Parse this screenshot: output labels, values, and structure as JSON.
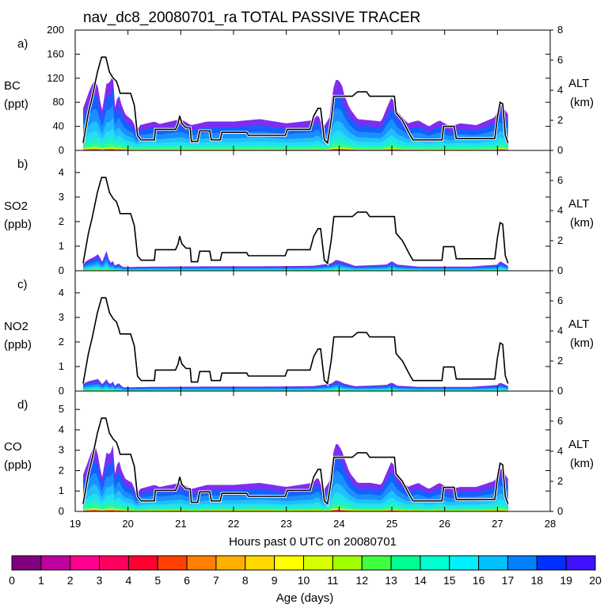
{
  "title": "nav_dc8_20080701_ra TOTAL PASSIVE TRACER",
  "chart_data": {
    "type": "area",
    "x_axis": {
      "label": "Hours past 0 UTC on 20080701",
      "range": [
        19,
        28
      ],
      "ticks": [
        "19",
        "20",
        "21",
        "22",
        "23",
        "24",
        "25",
        "26",
        "27",
        "28"
      ]
    },
    "altitude_km": [
      [
        19.15,
        0.5
      ],
      [
        19.25,
        2.5
      ],
      [
        19.32,
        3.5
      ],
      [
        19.42,
        5.2
      ],
      [
        19.5,
        6.2
      ],
      [
        19.58,
        6.2
      ],
      [
        19.65,
        5.2
      ],
      [
        19.72,
        4.8
      ],
      [
        19.78,
        4.6
      ],
      [
        19.82,
        4.2
      ],
      [
        19.85,
        3.8
      ],
      [
        20.05,
        3.8
      ],
      [
        20.12,
        3.0
      ],
      [
        20.18,
        1.0
      ],
      [
        20.25,
        0.7
      ],
      [
        20.5,
        0.7
      ],
      [
        20.52,
        1.4
      ],
      [
        20.9,
        1.4
      ],
      [
        20.95,
        1.8
      ],
      [
        20.98,
        2.3
      ],
      [
        21.02,
        1.8
      ],
      [
        21.1,
        1.5
      ],
      [
        21.18,
        1.5
      ],
      [
        21.2,
        0.6
      ],
      [
        21.32,
        0.6
      ],
      [
        21.36,
        1.3
      ],
      [
        21.55,
        1.3
      ],
      [
        21.58,
        0.7
      ],
      [
        21.75,
        0.7
      ],
      [
        21.78,
        1.2
      ],
      [
        22.25,
        1.2
      ],
      [
        22.28,
        1.0
      ],
      [
        22.98,
        1.0
      ],
      [
        23.02,
        1.4
      ],
      [
        23.45,
        1.4
      ],
      [
        23.52,
        2.3
      ],
      [
        23.6,
        2.8
      ],
      [
        23.65,
        2.8
      ],
      [
        23.72,
        0.7
      ],
      [
        23.78,
        0.5
      ],
      [
        23.85,
        2.0
      ],
      [
        23.9,
        3.6
      ],
      [
        24.25,
        3.6
      ],
      [
        24.35,
        3.9
      ],
      [
        24.52,
        3.9
      ],
      [
        24.58,
        3.6
      ],
      [
        25.05,
        3.6
      ],
      [
        25.08,
        2.5
      ],
      [
        25.2,
        2.0
      ],
      [
        25.35,
        1.0
      ],
      [
        25.4,
        0.7
      ],
      [
        25.95,
        0.7
      ],
      [
        25.98,
        1.6
      ],
      [
        26.18,
        1.6
      ],
      [
        26.22,
        0.8
      ],
      [
        26.95,
        0.8
      ],
      [
        27.0,
        2.2
      ],
      [
        27.05,
        3.2
      ],
      [
        27.1,
        3.1
      ],
      [
        27.15,
        1.0
      ],
      [
        27.2,
        0.5
      ]
    ],
    "panels": [
      {
        "panel_label": "a)",
        "ylabel": "BC",
        "yunits": "(ppt)",
        "ylim": [
          0,
          200
        ],
        "yticks": [
          "0",
          "40",
          "80",
          "120",
          "160",
          "200"
        ],
        "alt_label": "ALT",
        "alt_units": "(km)",
        "alt_lim": [
          0,
          8
        ],
        "alt_ticks": [
          "0",
          "2",
          "4",
          "6",
          "8"
        ],
        "tracer_envelope": [
          [
            19.15,
            70
          ],
          [
            19.25,
            95
          ],
          [
            19.32,
            110
          ],
          [
            19.38,
            118
          ],
          [
            19.45,
            100
          ],
          [
            19.5,
            60
          ],
          [
            19.6,
            115
          ],
          [
            19.65,
            110
          ],
          [
            19.72,
            130
          ],
          [
            19.75,
            70
          ],
          [
            19.82,
            95
          ],
          [
            19.88,
            75
          ],
          [
            19.95,
            60
          ],
          [
            20.08,
            50
          ],
          [
            20.14,
            40
          ],
          [
            20.16,
            30
          ],
          [
            20.22,
            42
          ],
          [
            20.5,
            48
          ],
          [
            20.6,
            44
          ],
          [
            21.0,
            52
          ],
          [
            21.2,
            42
          ],
          [
            21.5,
            48
          ],
          [
            22.0,
            48
          ],
          [
            22.5,
            52
          ],
          [
            23.0,
            45
          ],
          [
            23.5,
            50
          ],
          [
            23.6,
            60
          ],
          [
            23.7,
            38
          ],
          [
            23.82,
            55
          ],
          [
            23.88,
            100
          ],
          [
            23.95,
            120
          ],
          [
            24.05,
            110
          ],
          [
            24.1,
            92
          ],
          [
            24.2,
            70
          ],
          [
            24.35,
            52
          ],
          [
            24.6,
            50
          ],
          [
            24.8,
            48
          ],
          [
            24.9,
            70
          ],
          [
            25.0,
            90
          ],
          [
            25.1,
            65
          ],
          [
            25.3,
            45
          ],
          [
            25.5,
            50
          ],
          [
            25.7,
            40
          ],
          [
            25.9,
            50
          ],
          [
            26.1,
            40
          ],
          [
            26.3,
            45
          ],
          [
            26.6,
            42
          ],
          [
            26.95,
            55
          ],
          [
            27.0,
            65
          ],
          [
            27.05,
            80
          ],
          [
            27.12,
            70
          ],
          [
            27.2,
            60
          ]
        ]
      },
      {
        "panel_label": "b)",
        "ylabel": "SO2",
        "yunits": "(ppb)",
        "ylim": [
          0,
          4.9
        ],
        "yticks": [
          "0",
          "1",
          "2",
          "3",
          "4"
        ],
        "alt_label": "ALT",
        "alt_units": "(km)",
        "alt_lim": [
          0,
          8
        ],
        "alt_ticks": [
          "0",
          "2",
          "4",
          "6"
        ],
        "tracer_envelope": [
          [
            19.15,
            0.3
          ],
          [
            19.25,
            0.45
          ],
          [
            19.35,
            0.55
          ],
          [
            19.45,
            0.7
          ],
          [
            19.5,
            0.3
          ],
          [
            19.6,
            0.85
          ],
          [
            19.65,
            0.3
          ],
          [
            19.72,
            0.4
          ],
          [
            19.75,
            0.2
          ],
          [
            19.82,
            0.3
          ],
          [
            19.9,
            0.15
          ],
          [
            20.5,
            0.17
          ],
          [
            21.5,
            0.18
          ],
          [
            22.5,
            0.18
          ],
          [
            23.5,
            0.2
          ],
          [
            23.85,
            0.3
          ],
          [
            23.95,
            0.45
          ],
          [
            24.1,
            0.35
          ],
          [
            24.3,
            0.2
          ],
          [
            24.9,
            0.25
          ],
          [
            25.0,
            0.4
          ],
          [
            25.1,
            0.25
          ],
          [
            25.5,
            0.17
          ],
          [
            26.5,
            0.17
          ],
          [
            27.0,
            0.25
          ],
          [
            27.05,
            0.4
          ],
          [
            27.2,
            0.2
          ]
        ]
      },
      {
        "panel_label": "c)",
        "ylabel": "NO2",
        "yunits": "(ppb)",
        "ylim": [
          0,
          4.9
        ],
        "yticks": [
          "0",
          "1",
          "2",
          "3",
          "4"
        ],
        "alt_label": "ALT",
        "alt_units": "(km)",
        "alt_lim": [
          0,
          8
        ],
        "alt_ticks": [
          "0",
          "2",
          "4",
          "6"
        ],
        "tracer_envelope": [
          [
            19.15,
            0.3
          ],
          [
            19.25,
            0.4
          ],
          [
            19.35,
            0.45
          ],
          [
            19.45,
            0.5
          ],
          [
            19.5,
            0.25
          ],
          [
            19.6,
            0.5
          ],
          [
            19.65,
            0.25
          ],
          [
            19.72,
            0.4
          ],
          [
            19.75,
            0.2
          ],
          [
            19.82,
            0.35
          ],
          [
            19.9,
            0.15
          ],
          [
            20.5,
            0.17
          ],
          [
            21.5,
            0.18
          ],
          [
            22.5,
            0.18
          ],
          [
            23.5,
            0.2
          ],
          [
            23.85,
            0.3
          ],
          [
            23.95,
            0.45
          ],
          [
            24.1,
            0.3
          ],
          [
            24.3,
            0.2
          ],
          [
            24.9,
            0.25
          ],
          [
            25.0,
            0.35
          ],
          [
            25.1,
            0.22
          ],
          [
            25.5,
            0.17
          ],
          [
            26.5,
            0.17
          ],
          [
            27.0,
            0.25
          ],
          [
            27.05,
            0.35
          ],
          [
            27.2,
            0.2
          ]
        ]
      },
      {
        "panel_label": "d)",
        "ylabel": "CO",
        "yunits": "(ppb)",
        "ylim": [
          0,
          5.9
        ],
        "yticks": [
          "0",
          "1",
          "2",
          "3",
          "4",
          "5"
        ],
        "alt_label": "ALT",
        "alt_units": "(km)",
        "alt_lim": [
          0,
          8
        ],
        "alt_ticks": [
          "0",
          "2",
          "4",
          "6"
        ],
        "tracer_envelope": [
          [
            19.15,
            1.8
          ],
          [
            19.25,
            2.5
          ],
          [
            19.32,
            3.0
          ],
          [
            19.38,
            3.2
          ],
          [
            19.45,
            2.6
          ],
          [
            19.5,
            1.5
          ],
          [
            19.6,
            3.0
          ],
          [
            19.65,
            2.7
          ],
          [
            19.72,
            3.3
          ],
          [
            19.75,
            1.8
          ],
          [
            19.82,
            2.6
          ],
          [
            19.88,
            2.0
          ],
          [
            19.95,
            1.6
          ],
          [
            20.08,
            1.4
          ],
          [
            20.14,
            1.0
          ],
          [
            20.16,
            0.8
          ],
          [
            20.22,
            1.1
          ],
          [
            20.5,
            1.3
          ],
          [
            20.6,
            1.2
          ],
          [
            21.0,
            1.4
          ],
          [
            21.2,
            1.1
          ],
          [
            21.5,
            1.3
          ],
          [
            22.0,
            1.3
          ],
          [
            22.5,
            1.4
          ],
          [
            23.0,
            1.2
          ],
          [
            23.5,
            1.4
          ],
          [
            23.6,
            1.7
          ],
          [
            23.7,
            1.0
          ],
          [
            23.82,
            1.5
          ],
          [
            23.88,
            2.8
          ],
          [
            23.95,
            3.4
          ],
          [
            24.05,
            3.0
          ],
          [
            24.1,
            2.6
          ],
          [
            24.2,
            1.9
          ],
          [
            24.35,
            1.4
          ],
          [
            24.6,
            1.4
          ],
          [
            24.8,
            1.3
          ],
          [
            24.9,
            1.9
          ],
          [
            25.0,
            2.5
          ],
          [
            25.1,
            1.8
          ],
          [
            25.3,
            1.2
          ],
          [
            25.5,
            1.4
          ],
          [
            25.7,
            1.1
          ],
          [
            25.9,
            1.4
          ],
          [
            26.1,
            1.1
          ],
          [
            26.3,
            1.2
          ],
          [
            26.6,
            1.2
          ],
          [
            26.95,
            1.5
          ],
          [
            27.0,
            1.8
          ],
          [
            27.05,
            2.2
          ],
          [
            27.12,
            1.9
          ],
          [
            27.2,
            1.6
          ]
        ]
      }
    ],
    "colorbar": {
      "label": "Age (days)",
      "ticks": [
        "0",
        "1",
        "2",
        "3",
        "4",
        "5",
        "6",
        "7",
        "8",
        "9",
        "10",
        "11",
        "12",
        "13",
        "14",
        "15",
        "16",
        "17",
        "18",
        "19",
        "20"
      ],
      "colors": [
        "#800080",
        "#c000a0",
        "#ff0090",
        "#ff0060",
        "#ff0030",
        "#ff4000",
        "#ff8000",
        "#ffb000",
        "#ffd800",
        "#ffff00",
        "#d8ff00",
        "#a0ff00",
        "#40ff40",
        "#00ff90",
        "#00ffd0",
        "#00f0ff",
        "#00c0ff",
        "#0080ff",
        "#0030ff",
        "#4010ff"
      ]
    },
    "band_colors": [
      "#7f2df0",
      "#1560ff",
      "#1a90ff",
      "#20c0ff",
      "#22e0f0",
      "#22f0c8",
      "#30ff90",
      "#c8ff00",
      "#ff2080"
    ]
  }
}
